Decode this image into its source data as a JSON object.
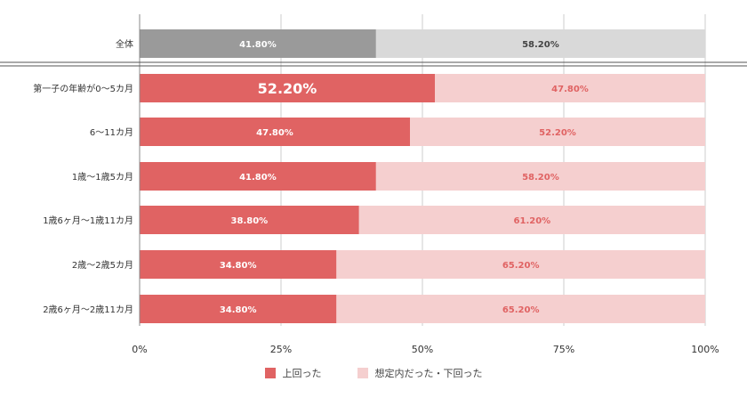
{
  "chart_data": {
    "type": "bar",
    "orientation": "horizontal",
    "stacked": true,
    "title": "",
    "xlabel": "",
    "ylabel": "",
    "xlim": [
      0,
      100
    ],
    "x_ticks": [
      "0%",
      "25%",
      "50%",
      "75%",
      "100%"
    ],
    "x_tick_values": [
      0,
      25,
      50,
      75,
      100
    ],
    "grid": true,
    "legend_position": "bottom",
    "categories": [
      "全体",
      "第一子の年齢が0～5カ月",
      "6～11カ月",
      "1歳～1歳5カ月",
      "1歳6ヶ月～1歳11カ月",
      "2歳～2歳5カ月",
      "2歳6ヶ月～2歳11カ月"
    ],
    "series": [
      {
        "name": "上回った",
        "values": [
          41.8,
          52.2,
          47.8,
          41.8,
          38.8,
          34.8,
          34.8
        ]
      },
      {
        "name": "想定内だった・下回った",
        "values": [
          58.2,
          47.8,
          52.2,
          58.2,
          61.2,
          65.2,
          65.2
        ]
      }
    ],
    "value_labels": [
      [
        "41.80%",
        "58.20%"
      ],
      [
        "52.20%",
        "47.80%"
      ],
      [
        "47.80%",
        "52.20%"
      ],
      [
        "41.80%",
        "58.20%"
      ],
      [
        "38.80%",
        "61.20%"
      ],
      [
        "34.80%",
        "65.20%"
      ],
      [
        "34.80%",
        "65.20%"
      ]
    ]
  },
  "colors": {
    "total_first": "#9a9a9a",
    "total_second": "#d9d9d9",
    "first": "#e06363",
    "second": "#f5cfcf",
    "label_on_first": "#ffffff",
    "label_on_second": "#e06363",
    "label_on_total_second": "#444444",
    "grid": "#cccccc",
    "axis_text": "#333333"
  },
  "legend": {
    "first_label": "上回った",
    "second_label": "想定内だった・下回った"
  }
}
